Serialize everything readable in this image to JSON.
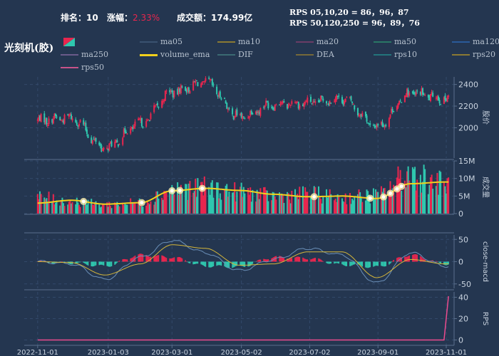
{
  "header": {
    "rank_label": "排名：10",
    "change_label": "涨幅：",
    "change_value": "2.33%",
    "turnover_label": "成交额：174.99亿",
    "rps_line1": "RPS 05,10,20 = 86，96，87",
    "rps_line2": "RPS 50,120,250 = 96，89，76",
    "stock_name": "光刻机(胶)"
  },
  "colors": {
    "up": "#e8264e",
    "down": "#2fc7ae",
    "background": "#243650",
    "volume_ema": "#f2d01c",
    "rps50": "#ec4b8e",
    "dif": "#6a8fb8",
    "dea": "#d6b73a"
  },
  "legend": [
    {
      "name": "ma05",
      "color": "#3a5270"
    },
    {
      "name": "ma10",
      "color": "#8b7a33"
    },
    {
      "name": "ma20",
      "color": "#6b3d66"
    },
    {
      "name": "ma50",
      "color": "#2a7765"
    },
    {
      "name": "ma120",
      "color": "#2a5a99"
    },
    {
      "name": "ma250",
      "color": "#6a5a8a"
    },
    {
      "name": "volume_ema",
      "color": "#f2d01c"
    },
    {
      "name": "DIF",
      "color": "#3b6a72"
    },
    {
      "name": "DEA",
      "color": "#75693a"
    },
    {
      "name": "rps10",
      "color": "#23757c"
    },
    {
      "name": "rps20",
      "color": "#8b7a33"
    },
    {
      "name": "rps50",
      "color": "#c85389"
    }
  ],
  "chart_data": [
    {
      "type": "candlestick",
      "ylabel": "股价",
      "ylim": [
        1720,
        2470
      ],
      "yticks": [
        2000,
        2200,
        2400
      ],
      "x_tick_labels": [
        "2022-11-01",
        "2023-01-03",
        "2023-03-01",
        "2023-05-02",
        "2023-07-02",
        "2023-09-01",
        "2023-11-01"
      ],
      "anchor_dates": [
        "2022-11-01",
        "2022-12-01",
        "2022-12-31",
        "2023-02-01",
        "2023-03-01",
        "2023-03-31",
        "2023-04-30",
        "2023-05-31",
        "2023-06-30",
        "2023-07-31",
        "2023-08-31",
        "2023-09-30",
        "2023-10-31"
      ],
      "close_anchors": [
        2070,
        2090,
        1810,
        2040,
        2330,
        2420,
        2100,
        2220,
        2230,
        2270,
        2010,
        2320,
        2270
      ]
    },
    {
      "type": "bar",
      "ylabel": "成交量",
      "ylim": [
        0,
        15000000
      ],
      "yticks": [
        0,
        5000000,
        10000000,
        15000000
      ],
      "ytick_labels": [
        "0",
        "5M",
        "10M",
        "15M"
      ],
      "series": [
        {
          "name": "volume_ema"
        }
      ],
      "volume_anchors": [
        4600000,
        3500000,
        2600000,
        3200000,
        6800000,
        7300000,
        6200000,
        5000000,
        5600000,
        4600000,
        5200000,
        11500000,
        8500000
      ],
      "ema_anchors": [
        3000000,
        3800000,
        2700000,
        3100000,
        6500000,
        7200000,
        6600000,
        5500000,
        4800000,
        5000000,
        4300000,
        8500000,
        9000000
      ]
    },
    {
      "type": "line",
      "ylabel": "close-macd",
      "ylim": [
        -60,
        60
      ],
      "yticks": [
        -50,
        0,
        50
      ],
      "series": [
        {
          "name": "DIF"
        },
        {
          "name": "DEA"
        }
      ],
      "dif_anchors": [
        0,
        -5,
        -40,
        10,
        48,
        20,
        -20,
        5,
        30,
        15,
        -48,
        20,
        -10
      ],
      "dea_anchors": [
        0,
        -2,
        -30,
        -5,
        38,
        30,
        -8,
        -5,
        22,
        22,
        -36,
        5,
        -5
      ]
    },
    {
      "type": "line",
      "ylabel": "RPS",
      "ylim": [
        -5,
        45
      ],
      "yticks": [
        0,
        20,
        40
      ],
      "series": [
        {
          "name": "rps50",
          "values_note": "flat at 0 until final days",
          "final_value": 41
        }
      ]
    }
  ]
}
